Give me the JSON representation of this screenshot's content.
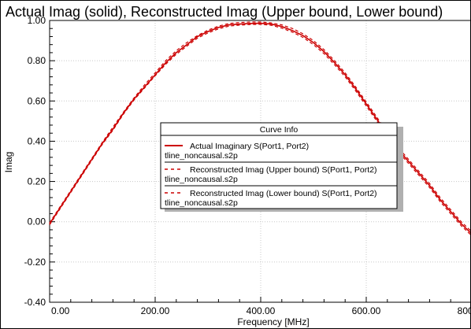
{
  "chart_data": {
    "type": "line",
    "title": "Actual Imag (solid), Reconstructed Imag (Upper bound, Lower bound)",
    "xlabel": "Frequency [MHz]",
    "ylabel": "Imag",
    "xlim": [
      0,
      800
    ],
    "ylim": [
      -0.4,
      1.0
    ],
    "x_ticks": [
      0,
      200,
      400,
      600,
      800
    ],
    "x_tick_labels": [
      "0.00",
      "200.00",
      "400.00",
      "600.00",
      "800.00"
    ],
    "y_ticks": [
      -0.4,
      -0.2,
      0.0,
      0.2,
      0.4,
      0.6,
      0.8,
      1.0
    ],
    "y_tick_labels": [
      "-0.40",
      "-0.20",
      "0.00",
      "0.20",
      "0.40",
      "0.60",
      "0.80",
      "1.00"
    ],
    "grid": true,
    "legend": {
      "title": "Curve Info",
      "placement": "center-right",
      "entries": [
        {
          "line1": "Actual Imaginary S(Port1, Port2)",
          "line2": "tline_noncausal.s2p"
        },
        {
          "line1": "Reconstructed Imag (Upper bound) S(Port1, Port2)",
          "line2": "tline_noncausal.s2p"
        },
        {
          "line1": "Reconstructed Imag (Lower bound) S(Port1, Port2)",
          "line2": "tline_noncausal.s2p"
        }
      ]
    },
    "series": [
      {
        "style": "solid",
        "color": "#cc0000",
        "x": [
          0,
          20,
          40,
          60,
          80,
          100,
          120,
          140,
          160,
          180,
          200,
          220,
          240,
          260,
          280,
          300,
          320,
          340,
          360,
          380,
          400,
          420,
          440,
          460,
          480,
          500,
          520,
          540,
          560,
          580,
          600,
          620,
          640,
          660,
          680,
          700,
          720,
          740,
          760,
          780,
          800
        ],
        "values": [
          -0.01,
          0.07,
          0.15,
          0.23,
          0.31,
          0.39,
          0.46,
          0.54,
          0.61,
          0.67,
          0.73,
          0.79,
          0.84,
          0.88,
          0.92,
          0.945,
          0.965,
          0.978,
          0.982,
          0.985,
          0.986,
          0.982,
          0.97,
          0.95,
          0.925,
          0.89,
          0.845,
          0.79,
          0.73,
          0.66,
          0.585,
          0.51,
          0.43,
          0.36,
          0.3,
          0.24,
          0.18,
          0.11,
          0.05,
          -0.01,
          -0.06
        ]
      },
      {
        "style": "dashed",
        "color": "#cc0000",
        "x": [
          0,
          20,
          40,
          60,
          80,
          100,
          120,
          140,
          160,
          180,
          200,
          220,
          240,
          260,
          280,
          300,
          320,
          340,
          360,
          380,
          400,
          420,
          440,
          460,
          480,
          500,
          520,
          540,
          560,
          580,
          600,
          620,
          640,
          660,
          680,
          700,
          720,
          740,
          760,
          780,
          800
        ],
        "values": [
          -0.005,
          0.075,
          0.155,
          0.235,
          0.315,
          0.395,
          0.47,
          0.545,
          0.615,
          0.68,
          0.74,
          0.8,
          0.85,
          0.89,
          0.925,
          0.952,
          0.972,
          0.985,
          0.99,
          0.992,
          0.992,
          0.988,
          0.978,
          0.96,
          0.934,
          0.9,
          0.855,
          0.8,
          0.74,
          0.67,
          0.595,
          0.52,
          0.44,
          0.37,
          0.31,
          0.25,
          0.19,
          0.12,
          0.06,
          0.0,
          -0.05
        ]
      },
      {
        "style": "dashed",
        "color": "#cc0000",
        "x": [
          0,
          20,
          40,
          60,
          80,
          100,
          120,
          140,
          160,
          180,
          200,
          220,
          240,
          260,
          280,
          300,
          320,
          340,
          360,
          380,
          400,
          420,
          440,
          460,
          480,
          500,
          520,
          540,
          560,
          580,
          600,
          620,
          640,
          660,
          680,
          700,
          720,
          740,
          760,
          780,
          800
        ],
        "values": [
          -0.015,
          0.065,
          0.145,
          0.225,
          0.305,
          0.385,
          0.455,
          0.535,
          0.605,
          0.665,
          0.725,
          0.782,
          0.832,
          0.872,
          0.912,
          0.938,
          0.958,
          0.972,
          0.977,
          0.98,
          0.981,
          0.976,
          0.962,
          0.942,
          0.916,
          0.88,
          0.835,
          0.78,
          0.72,
          0.65,
          0.575,
          0.5,
          0.42,
          0.35,
          0.29,
          0.23,
          0.17,
          0.1,
          0.04,
          -0.02,
          -0.07
        ]
      }
    ]
  }
}
